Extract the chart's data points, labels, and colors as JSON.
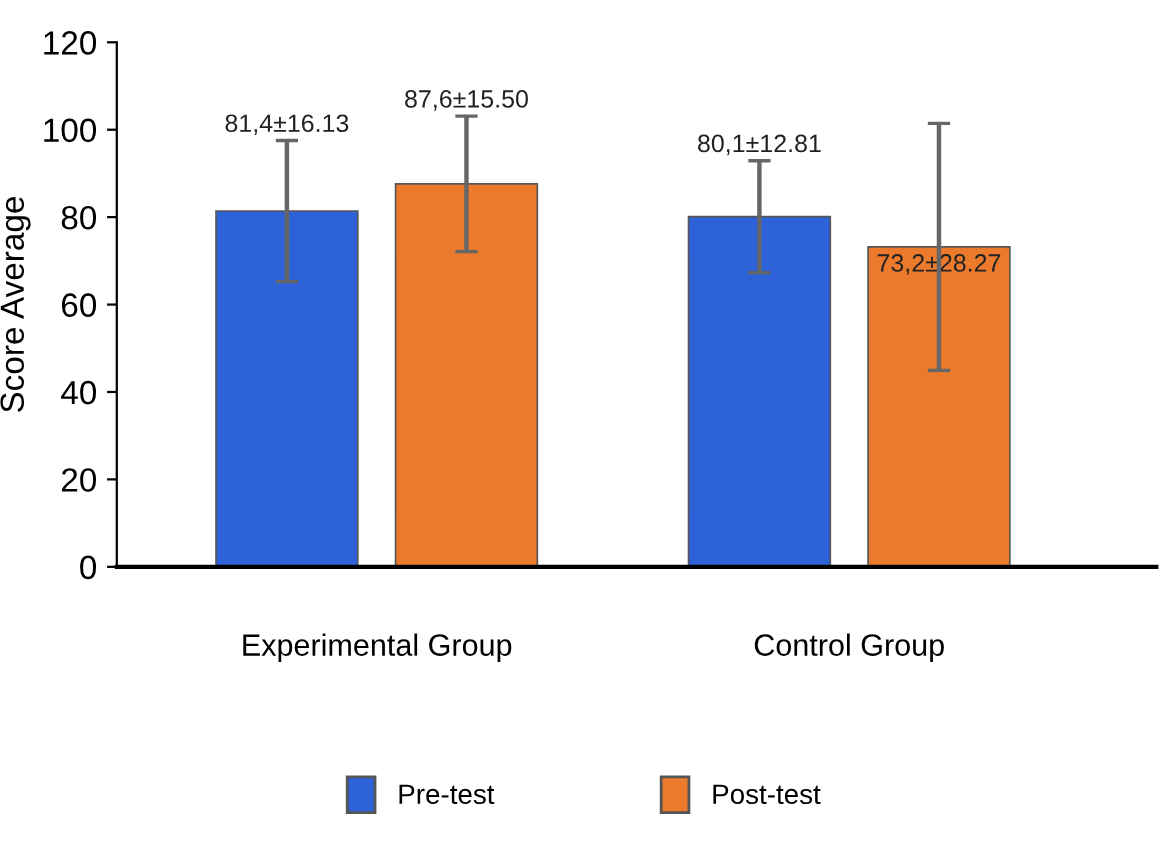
{
  "chart_data": {
    "type": "bar",
    "ylabel": "Score Average",
    "categories": [
      "Experimental Group",
      "Control Group"
    ],
    "series": [
      {
        "name": "Pre-test",
        "color": "#2e62d9",
        "values": [
          81.4,
          80.1
        ],
        "errors": [
          16.13,
          12.81
        ],
        "value_labels": [
          "81,4±16.13",
          "80,1±12.81"
        ]
      },
      {
        "name": "Post-test",
        "color": "#ec7a2c",
        "values": [
          87.6,
          73.2
        ],
        "errors": [
          15.5,
          28.27
        ],
        "value_labels": [
          "87,6±15.50",
          "73,2±28.27"
        ]
      }
    ],
    "ylim": [
      0,
      120
    ],
    "yticks": [
      0,
      20,
      40,
      60,
      80,
      100,
      120
    ],
    "grid": false,
    "legend": "bottom"
  }
}
